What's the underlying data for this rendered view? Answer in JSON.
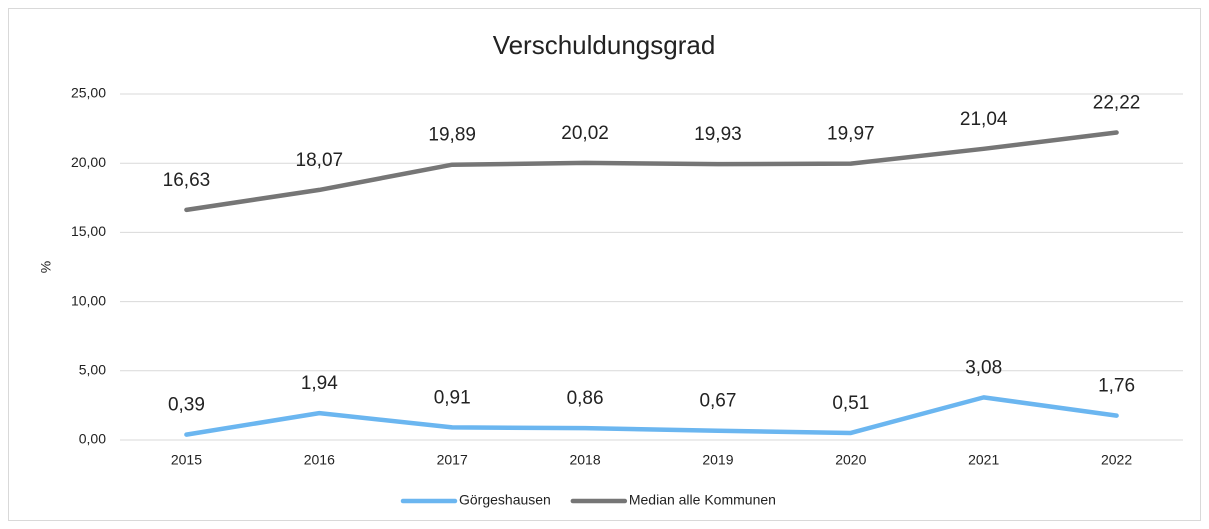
{
  "chart_data": {
    "type": "line",
    "title": "Verschuldungsgrad",
    "y_label": "%",
    "categories": [
      "2015",
      "2016",
      "2017",
      "2018",
      "2019",
      "2020",
      "2021",
      "2022"
    ],
    "series": [
      {
        "name": "Görgeshausen",
        "color": "#6bb6f0",
        "values": [
          0.39,
          1.94,
          0.91,
          0.86,
          0.67,
          0.51,
          3.08,
          1.76
        ],
        "value_labels": [
          "0,39",
          "1,94",
          "0,91",
          "0,86",
          "0,67",
          "0,51",
          "3,08",
          "1,76"
        ]
      },
      {
        "name": "Median alle Kommunen",
        "color": "#767676",
        "values": [
          16.63,
          18.07,
          19.89,
          20.02,
          19.93,
          19.97,
          21.04,
          22.22
        ],
        "value_labels": [
          "16,63",
          "18,07",
          "19,89",
          "20,02",
          "19,93",
          "19,97",
          "21,04",
          "22,22"
        ]
      }
    ],
    "ylim": [
      0,
      25
    ],
    "yticks": [
      {
        "value": 0,
        "label": "0,00"
      },
      {
        "value": 5,
        "label": "5,00"
      },
      {
        "value": 10,
        "label": "10,00"
      },
      {
        "value": 15,
        "label": "15,00"
      },
      {
        "value": 20,
        "label": "20,00"
      },
      {
        "value": 25,
        "label": "25,00"
      }
    ],
    "grid": true,
    "legend": "bottom"
  }
}
